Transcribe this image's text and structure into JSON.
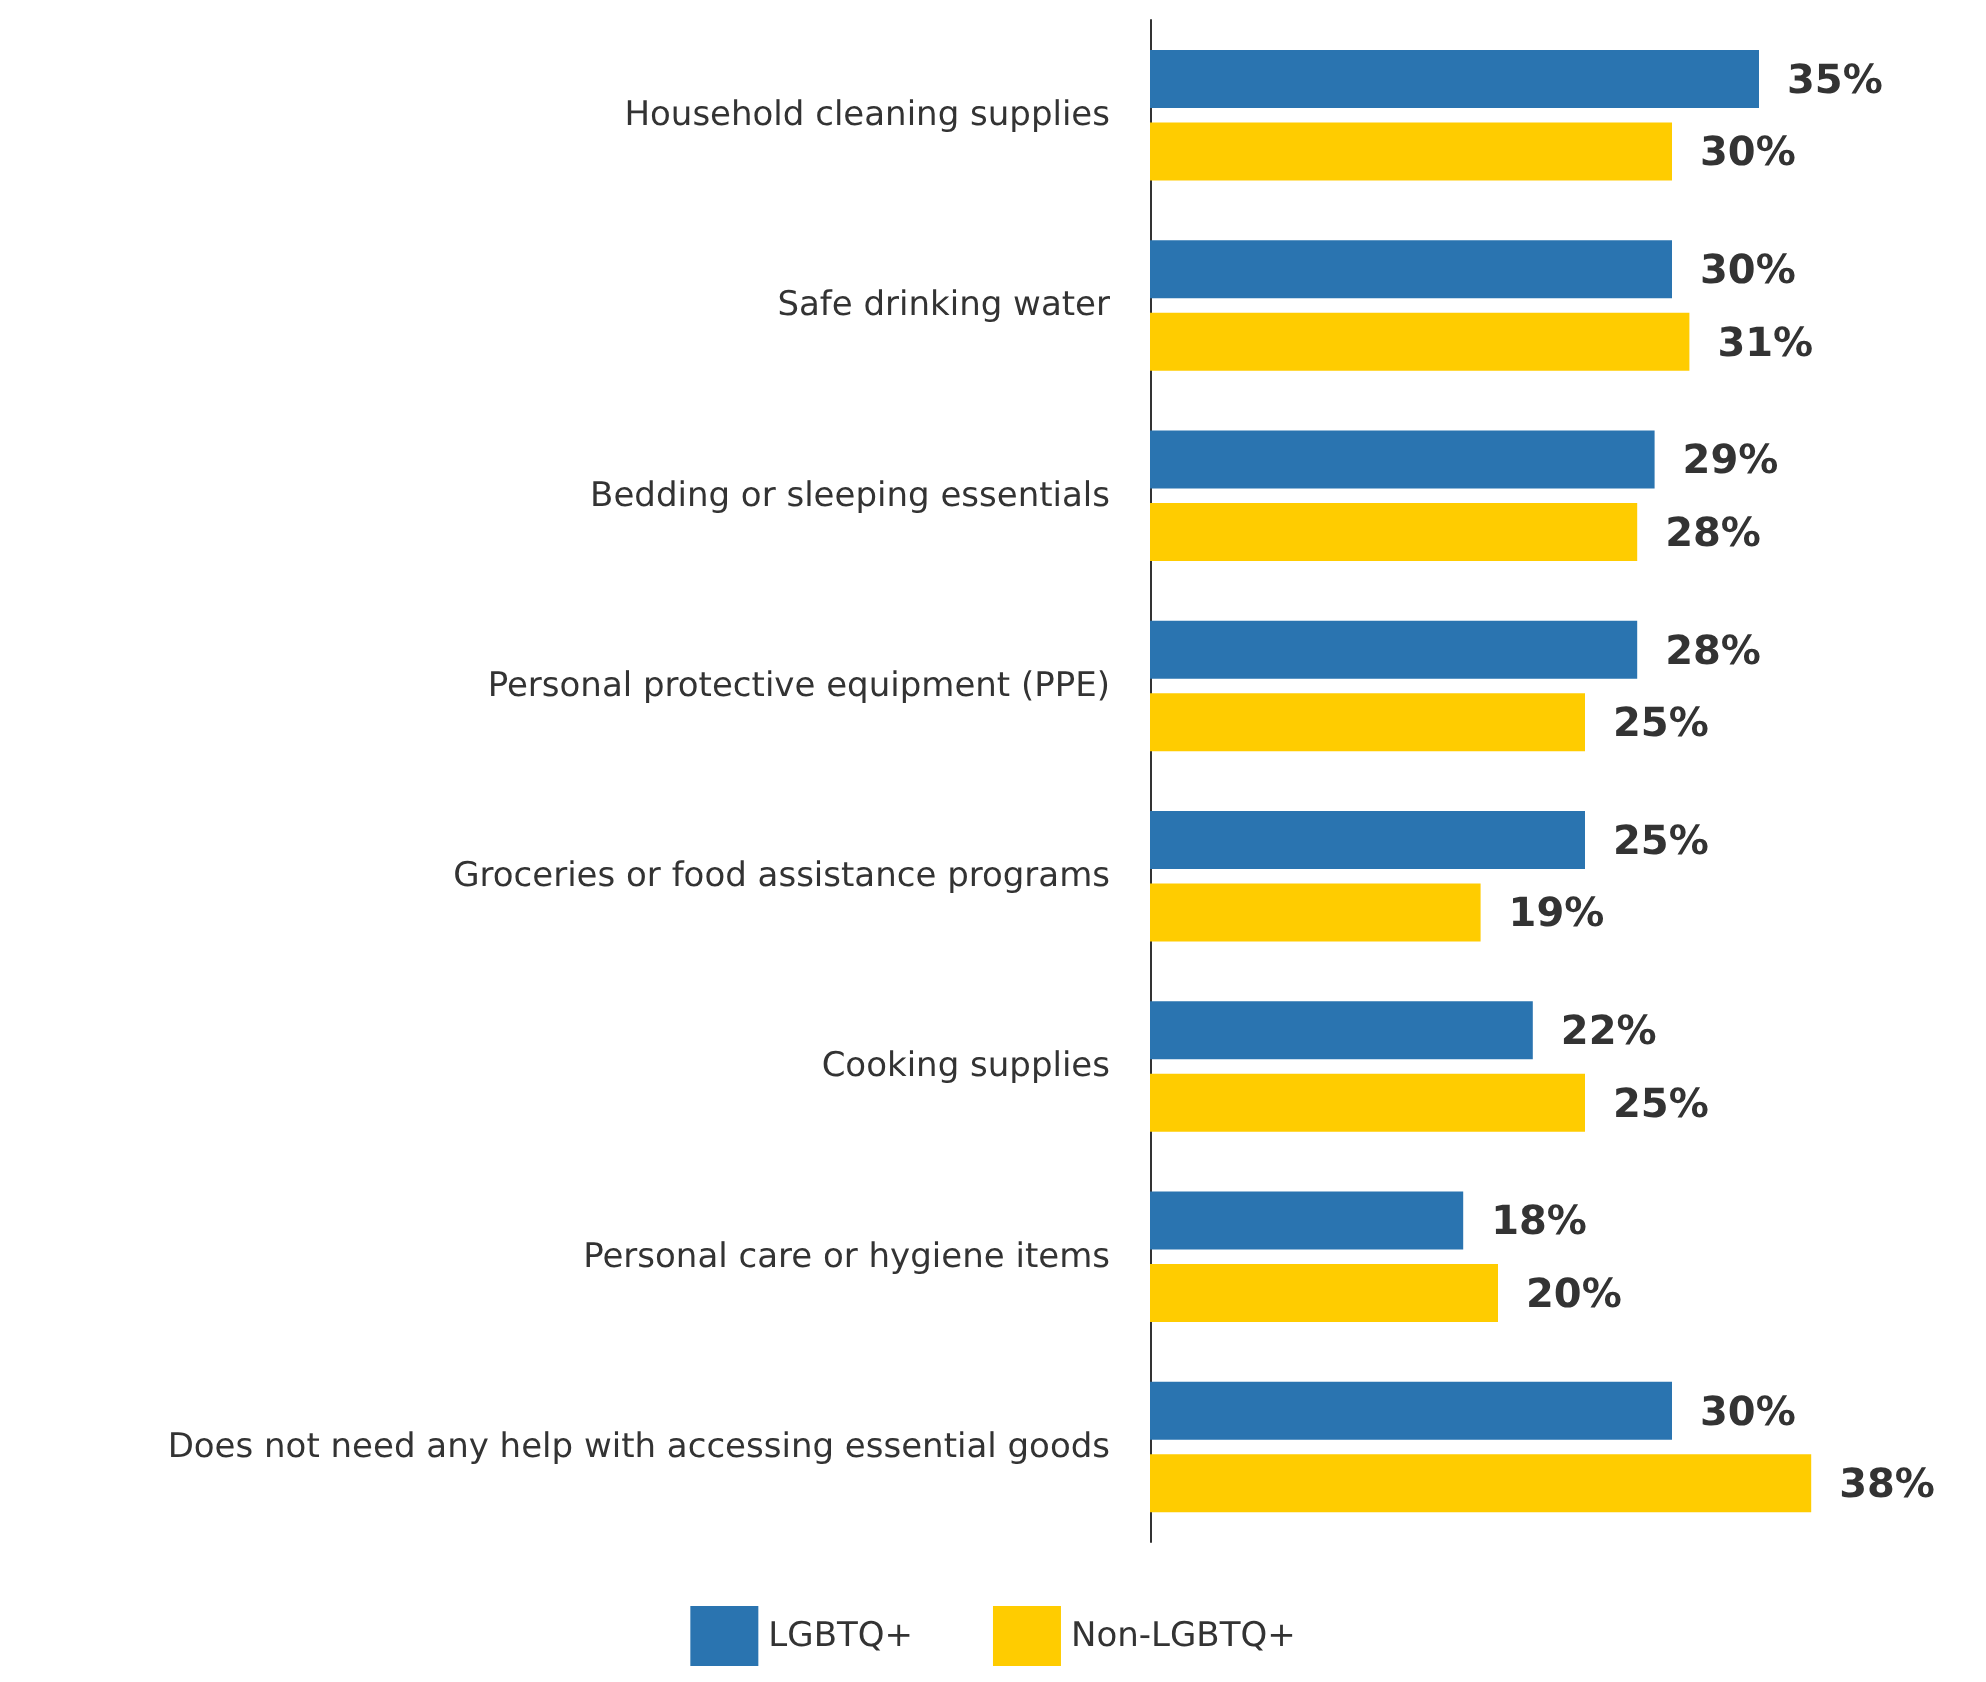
{
  "chart_data": {
    "type": "bar",
    "orientation": "horizontal",
    "categories": [
      "Household cleaning supplies",
      "Safe drinking water",
      "Bedding or sleeping essentials",
      "Personal protective equipment (PPE)",
      "Groceries or food assistance programs",
      "Cooking supplies",
      "Personal care or hygiene items",
      "Does not need any help with accessing essential goods"
    ],
    "series": [
      {
        "name": "LGBTQ+",
        "color": "#2a74b0",
        "values": [
          35,
          30,
          29,
          28,
          25,
          22,
          18,
          30
        ],
        "value_labels": [
          "35%",
          "30%",
          "29%",
          "28%",
          "25%",
          "22%",
          "18%",
          "30%"
        ]
      },
      {
        "name": "Non-LGBTQ+",
        "color": "#ffcc00",
        "values": [
          30,
          31,
          28,
          25,
          19,
          25,
          20,
          38
        ],
        "value_labels": [
          "30%",
          "31%",
          "28%",
          "25%",
          "19%",
          "25%",
          "20%",
          "38%"
        ]
      }
    ],
    "legend": "bottom"
  }
}
